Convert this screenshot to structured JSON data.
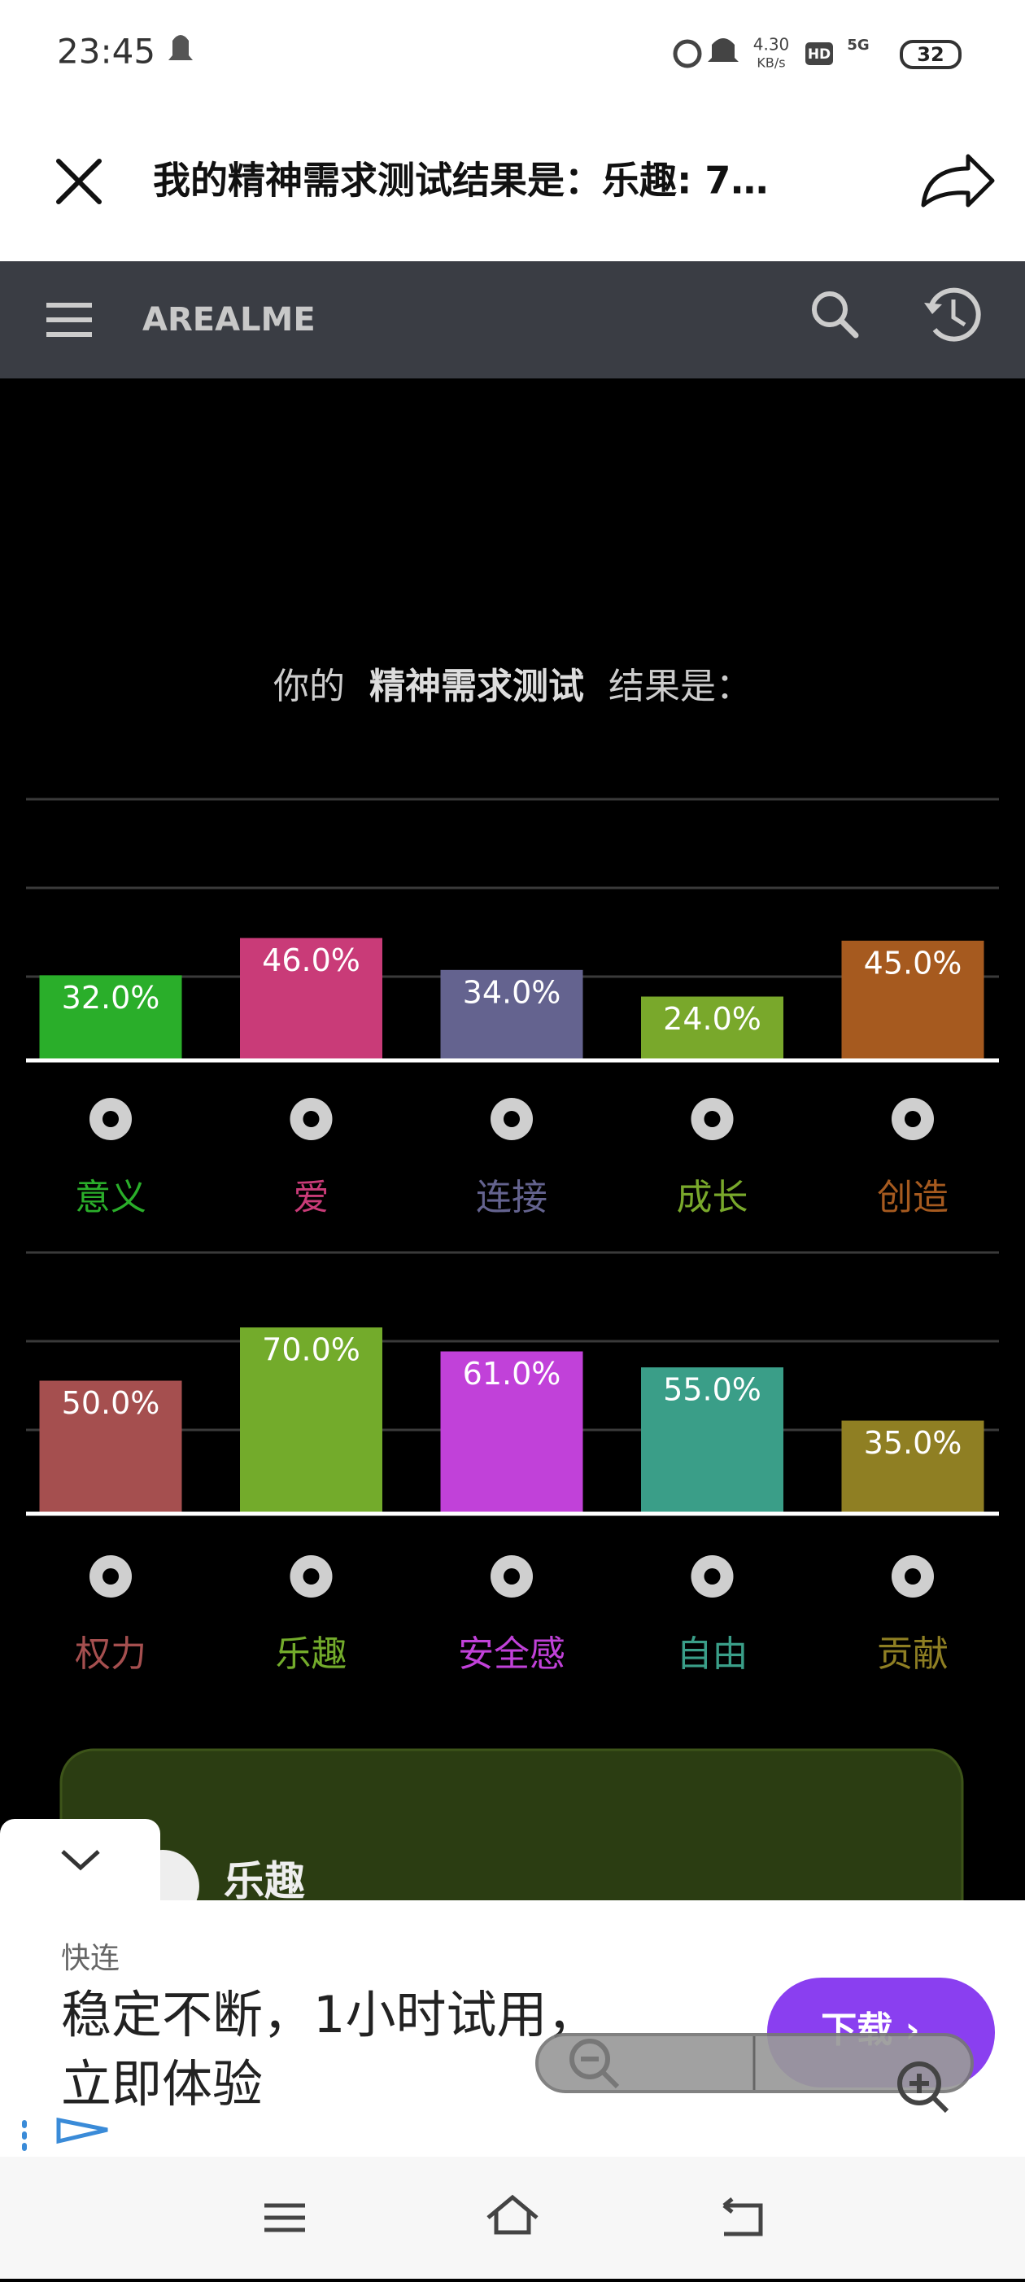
{
  "status_bar": {
    "time": "23:45",
    "speed": "4.30",
    "speed_unit": "KB/s",
    "hd": "HD",
    "network": "5G",
    "battery": "32"
  },
  "header": {
    "title": "我的精神需求测试结果是：乐趣: 7…"
  },
  "nav": {
    "brand": "AREALME"
  },
  "intro": {
    "before": "你的",
    "test_name": "精神需求测试",
    "after": "结果是："
  },
  "chart_data": [
    {
      "type": "bar",
      "categories": [
        "意义",
        "爱",
        "连接",
        "成长",
        "创造"
      ],
      "values": [
        32.0,
        46.0,
        34.0,
        24.0,
        45.0
      ],
      "value_labels": [
        "32.0%",
        "46.0%",
        "34.0%",
        "24.0%",
        "45.0%"
      ],
      "colors": [
        "#2aae2a",
        "#c93b78",
        "#64638f",
        "#79a82b",
        "#a65a1f"
      ],
      "ylim": [
        0,
        100
      ],
      "grid": true
    },
    {
      "type": "bar",
      "categories": [
        "权力",
        "乐趣",
        "安全感",
        "自由",
        "贡献"
      ],
      "values": [
        50.0,
        70.0,
        61.0,
        55.0,
        35.0
      ],
      "value_labels": [
        "50.0%",
        "70.0%",
        "61.0%",
        "55.0%",
        "35.0%"
      ],
      "colors": [
        "#a54f4f",
        "#73ab2b",
        "#c141d9",
        "#3a9e88",
        "#8f7f23"
      ],
      "ylim": [
        0,
        100
      ],
      "grid": true
    }
  ],
  "card": {
    "title": "乐趣"
  },
  "ad": {
    "brand": "快连",
    "line1": "稳定不断，1小时试用，",
    "line2": "立即体验",
    "button": "下载 ›"
  }
}
